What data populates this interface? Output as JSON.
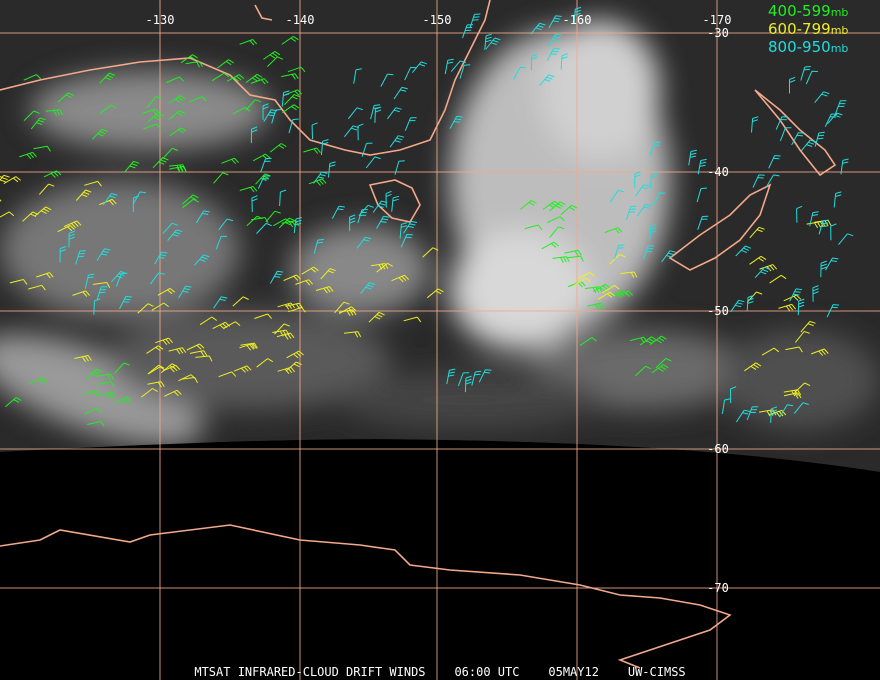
{
  "longitude_labels": [
    "-130",
    "-140",
    "-150",
    "-160",
    "-170"
  ],
  "latitude_labels": [
    "-30",
    "-40",
    "-50",
    "-60",
    "-70"
  ],
  "legend": [
    {
      "range": "400-599",
      "unit": "mb"
    },
    {
      "range": "600-799",
      "unit": "mb"
    },
    {
      "range": "800-950",
      "unit": "mb"
    }
  ],
  "footer": {
    "product": "MTSAT INFRARED-CLOUD DRIFT WINDS",
    "time": "06:00 UTC",
    "date": "05MAY12",
    "source": "UW-CIMSS"
  }
}
